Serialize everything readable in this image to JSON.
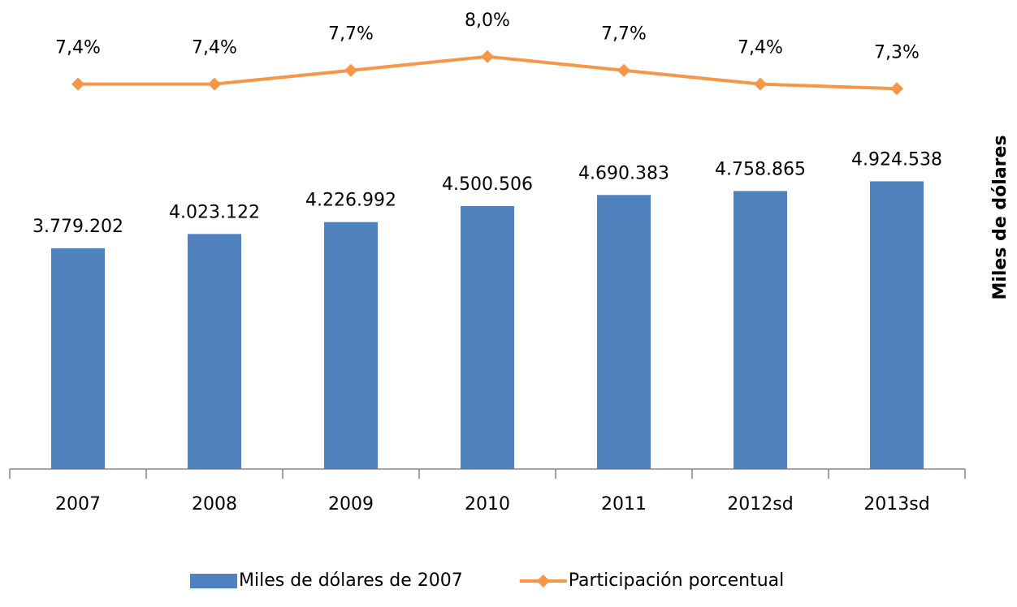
{
  "chart_data": {
    "type": "bar_line",
    "categories": [
      "2007",
      "2008",
      "2009",
      "2010",
      "2011",
      "2012sd",
      "2013sd"
    ],
    "series": [
      {
        "name": "Miles de dólares de 2007",
        "type": "bar",
        "color": "#4f81bd",
        "values": [
          3779202,
          4023122,
          4226992,
          4500506,
          4690383,
          4758865,
          4924538
        ],
        "value_labels": [
          "3.779.202",
          "4.023.122",
          "4.226.992",
          "4.500.506",
          "4.690.383",
          "4.758.865",
          "4.924.538"
        ]
      },
      {
        "name": "Participación porcentual",
        "type": "line",
        "axis": "y2",
        "color": "#f79646",
        "values": [
          7.4,
          7.4,
          7.7,
          8.0,
          7.7,
          7.4,
          7.3
        ],
        "value_labels": [
          "7,4%",
          "7,4%",
          "7,7%",
          "8,0%",
          "7,7%",
          "7,4%",
          "7,3%"
        ]
      }
    ],
    "ylabel": "Miles de dólares",
    "ylim": [
      0,
      8000000
    ],
    "y2lim": [
      -1,
      9.2
    ],
    "legend": "bottom"
  }
}
